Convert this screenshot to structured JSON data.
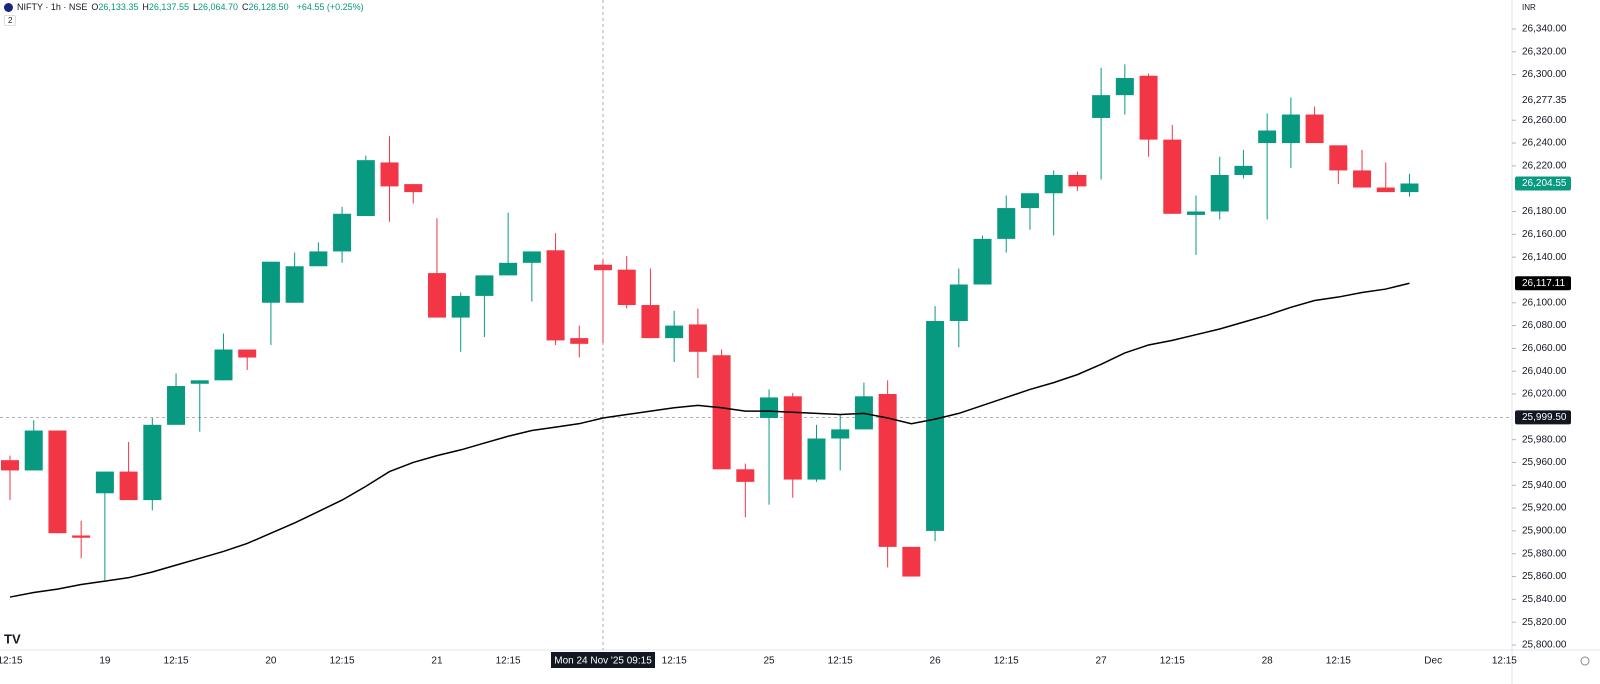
{
  "chart_data": {
    "type": "candlestick",
    "header": {
      "symbol": "NIFTY · 1h · NSE",
      "ohlc": [
        {
          "key": "O",
          "value": "26,133.35"
        },
        {
          "key": "H",
          "value": "26,137.55"
        },
        {
          "key": "L",
          "value": "26,064.70"
        },
        {
          "key": "C",
          "value": "26,128.50"
        }
      ],
      "change": "+64.55 (+0.25%)",
      "indicators": "2"
    },
    "currency": "INR",
    "categories": [
      "12:15",
      null,
      null,
      null,
      "19",
      null,
      null,
      "12:15",
      null,
      null,
      null,
      "20",
      null,
      null,
      "12:15",
      null,
      null,
      null,
      "21",
      null,
      null,
      "12:15",
      null,
      null,
      null,
      null,
      null,
      null,
      "12:15",
      null,
      null,
      null,
      "25",
      null,
      null,
      "12:15",
      null,
      null,
      null,
      "26",
      null,
      null,
      "12:15",
      null,
      null,
      null,
      "27",
      null,
      null,
      "12:15",
      null,
      null,
      null,
      "28",
      null,
      null,
      "12:15",
      null,
      null,
      null,
      "Dec",
      null,
      null,
      "12:15"
    ],
    "series": [
      {
        "up_color": "#089981",
        "down_color": "#f23645",
        "open": [
          25962,
          25953,
          25988,
          25896,
          25933,
          25952,
          25927,
          25993,
          26029,
          26032,
          26059,
          26100,
          26100,
          26132,
          26145,
          26176,
          26223,
          26204,
          26126,
          26087,
          26106,
          26124,
          26135,
          26146,
          26069,
          26133.35,
          26129,
          26098,
          26069,
          26081,
          26054,
          25954,
          25999,
          26018,
          25945,
          25981,
          25989,
          26020,
          25886,
          25900,
          26084,
          26116,
          26156,
          26183,
          26196,
          26212,
          26262,
          26282,
          26299,
          26243,
          26177,
          26180,
          26212,
          26240,
          26240,
          26265,
          26238,
          26216,
          26201,
          26197,
          null,
          null,
          null,
          null
        ],
        "high": [
          25966,
          25997,
          25988,
          25909,
          25952,
          25978,
          25999,
          26038,
          26032,
          26073,
          26059,
          26136,
          26144,
          26153,
          26184,
          26229,
          26246,
          26204,
          26174,
          26109,
          26124,
          26179,
          26145,
          26161,
          26080,
          26137.55,
          26141,
          26130,
          26093,
          26095,
          26059,
          25959,
          26024,
          26021,
          25993,
          26002,
          26030,
          26032,
          25886,
          26097,
          26130,
          26159,
          26194,
          26196,
          26216,
          26215,
          26306,
          26309,
          26301,
          26256,
          26194,
          26228,
          26234,
          26266,
          26280,
          26272,
          26238,
          26234,
          26223,
          26213,
          null,
          null,
          null,
          null
        ],
        "low": [
          25927,
          25953,
          25898,
          25876,
          25857,
          25927,
          25918,
          25993,
          25987,
          26032,
          26041,
          26063,
          26100,
          26132,
          26135,
          26176,
          26171,
          26187,
          26087,
          26057,
          26070,
          26124,
          26101,
          26063,
          26052,
          26064.7,
          26095,
          26069,
          26048,
          26034,
          25954,
          25912,
          25923,
          25929,
          25943,
          25953,
          25989,
          25868,
          25860,
          25891,
          26061,
          26116,
          26144,
          26164,
          26159,
          26198,
          26208,
          26265,
          26228,
          26178,
          26142,
          26173,
          26209,
          26173,
          26218,
          26240,
          26204,
          26201,
          26197,
          26193,
          null,
          null,
          null,
          null
        ],
        "close": [
          25953,
          25988,
          25898,
          25894,
          25952,
          25927,
          25993,
          26027,
          26032,
          26059,
          26052,
          26136,
          26132,
          26145,
          26178,
          26225,
          26202,
          26197,
          26087,
          26106,
          26124,
          26135,
          26145,
          26067,
          26064,
          26128.5,
          26098,
          26069,
          26080,
          26057,
          25954,
          25943,
          26017,
          25945,
          25981,
          25989,
          26018,
          25886,
          25860,
          26084,
          26116,
          26156,
          26183,
          26196,
          26212,
          26202,
          26282,
          26297,
          26243,
          26178,
          26180,
          26212,
          26220,
          26251,
          26265,
          26240,
          26216,
          26201,
          26197,
          26204.55,
          null,
          null,
          null,
          null
        ]
      },
      {
        "color": "#000000",
        "values": [
          25842,
          25846,
          25849,
          25853,
          25856,
          25859,
          25864,
          25870,
          25876,
          25882,
          25889,
          25898,
          25907,
          25917,
          25927,
          25939,
          25952,
          25960,
          25966,
          25971,
          25977,
          25983,
          25988,
          25991,
          25994,
          25999,
          26002,
          26005,
          26008,
          26010,
          26008,
          26005,
          26005,
          26004,
          26003,
          26002,
          26003,
          25999,
          25994,
          25998,
          26003,
          26010,
          26017,
          26024,
          26030,
          26037,
          26046,
          26056,
          26063,
          26067,
          26072,
          26077,
          26083,
          26089,
          26096,
          26102,
          26105,
          26109,
          26112,
          26117.11,
          null,
          null,
          null,
          null
        ]
      }
    ],
    "ylim": [
      25795.6,
      26365.4
    ],
    "yticks": [
      {
        "value": 25800,
        "label": "25,800.00"
      },
      {
        "value": 25820,
        "label": "25,820.00"
      },
      {
        "value": 25840,
        "label": "25,840.00"
      },
      {
        "value": 25860,
        "label": "25,860.00"
      },
      {
        "value": 25880,
        "label": "25,880.00"
      },
      {
        "value": 25900,
        "label": "25,900.00"
      },
      {
        "value": 25920,
        "label": "25,920.00"
      },
      {
        "value": 25940,
        "label": "25,940.00"
      },
      {
        "value": 25960,
        "label": "25,960.00"
      },
      {
        "value": 25980,
        "label": "25,980.00"
      },
      {
        "value": 26020,
        "label": "26,020.00"
      },
      {
        "value": 26040,
        "label": "26,040.00"
      },
      {
        "value": 26060,
        "label": "26,060.00"
      },
      {
        "value": 26080,
        "label": "26,080.00"
      },
      {
        "value": 26100,
        "label": "26,100.00"
      },
      {
        "value": 26140,
        "label": "26,140.00"
      },
      {
        "value": 26160,
        "label": "26,160.00"
      },
      {
        "value": 26180,
        "label": "26,180.00"
      },
      {
        "value": 26220,
        "label": "26,220.00"
      },
      {
        "value": 26240,
        "label": "26,240.00"
      },
      {
        "value": 26260,
        "label": "26,260.00"
      },
      {
        "value": 26300,
        "label": "26,300.00"
      },
      {
        "value": 26320,
        "label": "26,320.00"
      },
      {
        "value": 26340,
        "label": "26,340.00"
      }
    ],
    "price_labels": [
      {
        "value": 26277.35,
        "label": "26,277.35",
        "color": "#ffffff"
      },
      {
        "value": 26204.55,
        "label": "26,204.55",
        "color": "#089981"
      },
      {
        "value": 26117.11,
        "label": "26,117.11",
        "color": "#000000"
      }
    ],
    "crosshair": {
      "index": 25,
      "value": 25999.5,
      "x_label": "Mon 24 Nov '25  09:15",
      "y_label": "25,999.50"
    }
  }
}
